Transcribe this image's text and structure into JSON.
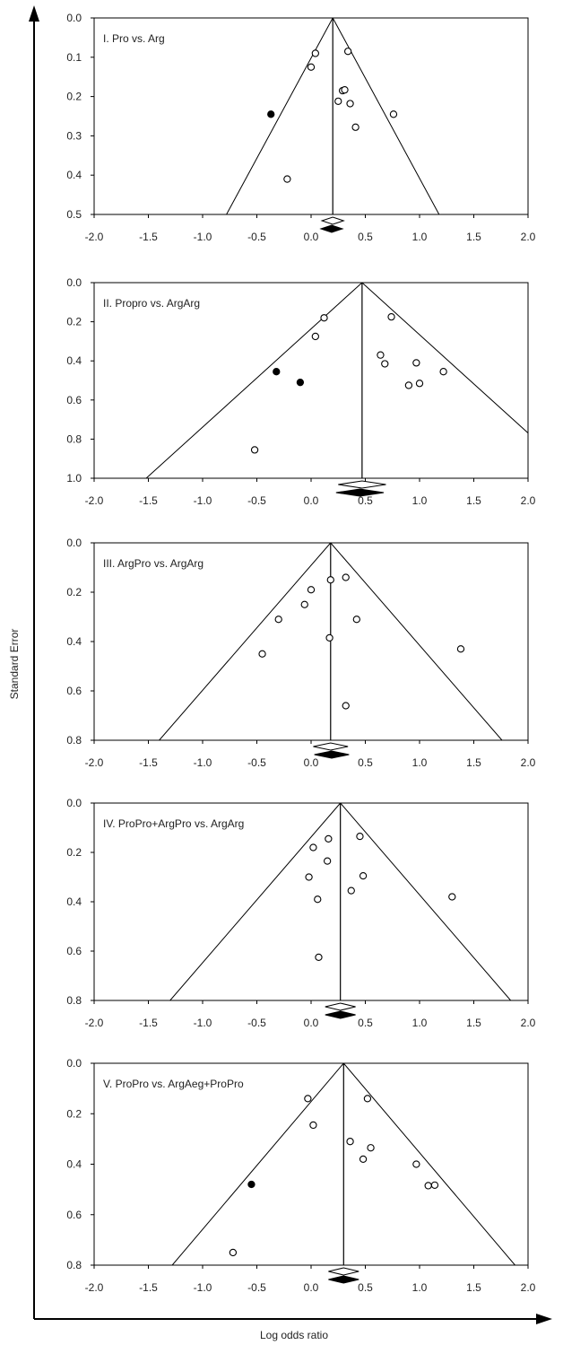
{
  "figure": {
    "ylabel": "Standard Error",
    "xlabel": "Log odds ratio"
  },
  "chart_data": [
    {
      "type": "scatter",
      "title": "I. Pro vs. Arg",
      "xlim": [
        -2.0,
        2.0
      ],
      "ylim": [
        0.0,
        0.5
      ],
      "y_inverted": true,
      "xticks": [
        "-2.0",
        "-1.5",
        "-1.0",
        "-0.5",
        "0.0",
        "0.5",
        "1.0",
        "1.5",
        "2.0"
      ],
      "yticks": [
        "0.0",
        "0.1",
        "0.2",
        "0.3",
        "0.4",
        "0.5"
      ],
      "pooled_estimate": 0.2,
      "funnel_bottom_se": 0.5,
      "funnel_bottom_left": -0.78,
      "funnel_bottom_right": 1.18,
      "summary_diamond_open": {
        "center": 0.2,
        "low": 0.1,
        "high": 0.3
      },
      "summary_diamond_filled": {
        "center": 0.19,
        "low": 0.09,
        "high": 0.29
      },
      "points": [
        {
          "x": 0.04,
          "y": 0.09,
          "filled": false
        },
        {
          "x": 0.0,
          "y": 0.125,
          "filled": false
        },
        {
          "x": 0.34,
          "y": 0.085,
          "filled": false
        },
        {
          "x": 0.29,
          "y": 0.185,
          "filled": false
        },
        {
          "x": 0.31,
          "y": 0.183,
          "filled": false
        },
        {
          "x": 0.25,
          "y": 0.212,
          "filled": false
        },
        {
          "x": 0.36,
          "y": 0.218,
          "filled": false
        },
        {
          "x": 0.76,
          "y": 0.245,
          "filled": false
        },
        {
          "x": 0.41,
          "y": 0.278,
          "filled": false
        },
        {
          "x": -0.22,
          "y": 0.41,
          "filled": false
        },
        {
          "x": -0.37,
          "y": 0.245,
          "filled": true
        }
      ]
    },
    {
      "type": "scatter",
      "title": "II. Propro vs. ArgArg",
      "xlim": [
        -2.0,
        2.0
      ],
      "ylim": [
        0.0,
        1.0
      ],
      "y_inverted": true,
      "xticks": [
        "-2.0",
        "-1.5",
        "-1.0",
        "-0.5",
        "0.0",
        "0.5",
        "1.0",
        "1.5",
        "2.0"
      ],
      "yticks": [
        "0.0",
        "0.2",
        "0.4",
        "0.6",
        "0.8",
        "1.0"
      ],
      "pooled_estimate": 0.47,
      "funnel_bottom_se": 1.0,
      "funnel_bottom_left": -1.52,
      "funnel_bottom_right": 2.46,
      "summary_diamond_open": {
        "center": 0.47,
        "low": 0.25,
        "high": 0.69
      },
      "summary_diamond_filled": {
        "center": 0.45,
        "low": 0.23,
        "high": 0.67
      },
      "points": [
        {
          "x": 0.12,
          "y": 0.18,
          "filled": false
        },
        {
          "x": 0.74,
          "y": 0.175,
          "filled": false
        },
        {
          "x": 0.04,
          "y": 0.275,
          "filled": false
        },
        {
          "x": 0.64,
          "y": 0.37,
          "filled": false
        },
        {
          "x": 0.68,
          "y": 0.415,
          "filled": false
        },
        {
          "x": 0.97,
          "y": 0.41,
          "filled": false
        },
        {
          "x": 1.22,
          "y": 0.455,
          "filled": false
        },
        {
          "x": 1.0,
          "y": 0.515,
          "filled": false
        },
        {
          "x": 0.9,
          "y": 0.525,
          "filled": false
        },
        {
          "x": -0.52,
          "y": 0.855,
          "filled": false
        },
        {
          "x": -0.32,
          "y": 0.455,
          "filled": true
        },
        {
          "x": -0.1,
          "y": 0.51,
          "filled": true
        }
      ]
    },
    {
      "type": "scatter",
      "title": "III. ArgPro vs. ArgArg",
      "xlim": [
        -2.0,
        2.0
      ],
      "ylim": [
        0.0,
        0.8
      ],
      "y_inverted": true,
      "xticks": [
        "-2.0",
        "-1.5",
        "-1.0",
        "-0.5",
        "0.0",
        "0.5",
        "1.0",
        "1.5",
        "2.0"
      ],
      "yticks": [
        "0.0",
        "0.2",
        "0.4",
        "0.6",
        "0.8"
      ],
      "pooled_estimate": 0.18,
      "funnel_bottom_se": 0.8,
      "funnel_bottom_left": -1.4,
      "funnel_bottom_right": 1.76,
      "summary_diamond_open": {
        "center": 0.18,
        "low": 0.02,
        "high": 0.34
      },
      "summary_diamond_filled": {
        "center": 0.19,
        "low": 0.03,
        "high": 0.35
      },
      "points": [
        {
          "x": 0.18,
          "y": 0.15,
          "filled": false
        },
        {
          "x": 0.32,
          "y": 0.14,
          "filled": false
        },
        {
          "x": 0.0,
          "y": 0.19,
          "filled": false
        },
        {
          "x": -0.06,
          "y": 0.25,
          "filled": false
        },
        {
          "x": -0.3,
          "y": 0.31,
          "filled": false
        },
        {
          "x": 0.42,
          "y": 0.31,
          "filled": false
        },
        {
          "x": 0.17,
          "y": 0.385,
          "filled": false
        },
        {
          "x": 1.38,
          "y": 0.43,
          "filled": false
        },
        {
          "x": -0.45,
          "y": 0.45,
          "filled": false
        },
        {
          "x": 0.32,
          "y": 0.66,
          "filled": false
        }
      ]
    },
    {
      "type": "scatter",
      "title": "IV. ProPro+ArgPro vs. ArgArg",
      "xlim": [
        -2.0,
        2.0
      ],
      "ylim": [
        0.0,
        0.8
      ],
      "y_inverted": true,
      "xticks": [
        "-2.0",
        "-1.5",
        "-1.0",
        "-0.5",
        "0.0",
        "0.5",
        "1.0",
        "1.5",
        "2.0"
      ],
      "yticks": [
        "0.0",
        "0.2",
        "0.4",
        "0.6",
        "0.8"
      ],
      "pooled_estimate": 0.27,
      "funnel_bottom_se": 0.8,
      "funnel_bottom_left": -1.3,
      "funnel_bottom_right": 1.84,
      "summary_diamond_open": {
        "center": 0.27,
        "low": 0.13,
        "high": 0.41
      },
      "summary_diamond_filled": {
        "center": 0.27,
        "low": 0.13,
        "high": 0.41
      },
      "points": [
        {
          "x": 0.45,
          "y": 0.135,
          "filled": false
        },
        {
          "x": 0.16,
          "y": 0.145,
          "filled": false
        },
        {
          "x": 0.02,
          "y": 0.18,
          "filled": false
        },
        {
          "x": 0.15,
          "y": 0.235,
          "filled": false
        },
        {
          "x": -0.02,
          "y": 0.3,
          "filled": false
        },
        {
          "x": 0.48,
          "y": 0.295,
          "filled": false
        },
        {
          "x": 0.37,
          "y": 0.355,
          "filled": false
        },
        {
          "x": 0.06,
          "y": 0.39,
          "filled": false
        },
        {
          "x": 1.3,
          "y": 0.38,
          "filled": false
        },
        {
          "x": 0.07,
          "y": 0.625,
          "filled": false
        }
      ]
    },
    {
      "type": "scatter",
      "title": "V. ProPro vs. ArgAeg+ProPro",
      "xlim": [
        -2.0,
        2.0
      ],
      "ylim": [
        0.0,
        0.8
      ],
      "y_inverted": true,
      "xticks": [
        "-2.0",
        "-1.5",
        "-1.0",
        "-0.5",
        "0.0",
        "0.5",
        "1.0",
        "1.5",
        "2.0"
      ],
      "yticks": [
        "0.0",
        "0.2",
        "0.4",
        "0.6",
        "0.8"
      ],
      "pooled_estimate": 0.3,
      "funnel_bottom_se": 0.8,
      "funnel_bottom_left": -1.28,
      "funnel_bottom_right": 1.88,
      "summary_diamond_open": {
        "center": 0.3,
        "low": 0.16,
        "high": 0.44
      },
      "summary_diamond_filled": {
        "center": 0.3,
        "low": 0.16,
        "high": 0.44
      },
      "points": [
        {
          "x": -0.03,
          "y": 0.14,
          "filled": false
        },
        {
          "x": 0.52,
          "y": 0.14,
          "filled": false
        },
        {
          "x": 0.02,
          "y": 0.245,
          "filled": false
        },
        {
          "x": 0.36,
          "y": 0.31,
          "filled": false
        },
        {
          "x": 0.55,
          "y": 0.335,
          "filled": false
        },
        {
          "x": 0.48,
          "y": 0.38,
          "filled": false
        },
        {
          "x": 0.97,
          "y": 0.4,
          "filled": false
        },
        {
          "x": 1.08,
          "y": 0.485,
          "filled": false
        },
        {
          "x": 1.14,
          "y": 0.483,
          "filled": false
        },
        {
          "x": -0.72,
          "y": 0.75,
          "filled": false
        },
        {
          "x": -0.55,
          "y": 0.48,
          "filled": true
        }
      ]
    }
  ]
}
